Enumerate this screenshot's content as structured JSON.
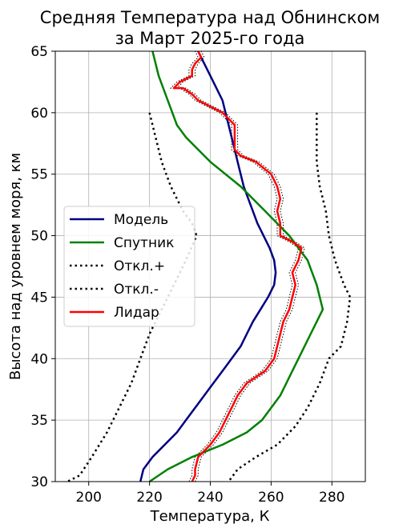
{
  "chart_data": {
    "type": "line",
    "title": [
      "Средняя Температура над Обнинском",
      "за Март 2025-го года"
    ],
    "xlabel": "Температура, К",
    "ylabel": "Высота над уровнем моря, км",
    "xlim": [
      189,
      291
    ],
    "ylim": [
      30,
      65
    ],
    "xticks": [
      200,
      220,
      240,
      260,
      280
    ],
    "yticks": [
      30,
      35,
      40,
      45,
      50,
      55,
      60,
      65
    ],
    "grid": true,
    "legend_position": "center-left",
    "series": [
      {
        "name": "Модель",
        "color": "#000080",
        "style": "solid",
        "points": [
          [
            217,
            30
          ],
          [
            218,
            31
          ],
          [
            221,
            32
          ],
          [
            225,
            33
          ],
          [
            229,
            34
          ],
          [
            232,
            35
          ],
          [
            235,
            36
          ],
          [
            238,
            37
          ],
          [
            241,
            38
          ],
          [
            244,
            39
          ],
          [
            247,
            40
          ],
          [
            250,
            41
          ],
          [
            252,
            42
          ],
          [
            254,
            43
          ],
          [
            256.5,
            44
          ],
          [
            259,
            45
          ],
          [
            261,
            46
          ],
          [
            261.5,
            47
          ],
          [
            261,
            48
          ],
          [
            259.5,
            49
          ],
          [
            257.5,
            50
          ],
          [
            255.5,
            51
          ],
          [
            254,
            52
          ],
          [
            252.5,
            53
          ],
          [
            251,
            54
          ],
          [
            250,
            55
          ],
          [
            249,
            56
          ],
          [
            248,
            57
          ],
          [
            247,
            58
          ],
          [
            246,
            59
          ],
          [
            245,
            60
          ],
          [
            244,
            61
          ],
          [
            242,
            62
          ],
          [
            240,
            63
          ],
          [
            238,
            64
          ],
          [
            236,
            65
          ]
        ]
      },
      {
        "name": "Спутник",
        "color": "#008000",
        "style": "solid",
        "points": [
          [
            220,
            30
          ],
          [
            226,
            31
          ],
          [
            234,
            32
          ],
          [
            244,
            33
          ],
          [
            252,
            34
          ],
          [
            257,
            35
          ],
          [
            260,
            36
          ],
          [
            263,
            37
          ],
          [
            265,
            38
          ],
          [
            267,
            39
          ],
          [
            269,
            40
          ],
          [
            271,
            41
          ],
          [
            273,
            42
          ],
          [
            275,
            43
          ],
          [
            277,
            44
          ],
          [
            275,
            46
          ],
          [
            272,
            48
          ],
          [
            266,
            50
          ],
          [
            258,
            52
          ],
          [
            250,
            54
          ],
          [
            240,
            56
          ],
          [
            232,
            58
          ],
          [
            229,
            59
          ],
          [
            226,
            61
          ],
          [
            223,
            63
          ],
          [
            221,
            65
          ]
        ]
      },
      {
        "name": "Откл.+",
        "color": "#000000",
        "style": "dotted",
        "points": [
          [
            220,
            60
          ],
          [
            222,
            58
          ],
          [
            224,
            56
          ],
          [
            227,
            54
          ],
          [
            231,
            52
          ],
          [
            234,
            51
          ],
          [
            235.5,
            50
          ],
          [
            232,
            48
          ],
          [
            228,
            46
          ],
          [
            224,
            44
          ],
          [
            220,
            42
          ],
          [
            217,
            40
          ],
          [
            214,
            38
          ],
          [
            210,
            36
          ],
          [
            206,
            34
          ],
          [
            201,
            32
          ],
          [
            197,
            30.5
          ],
          [
            193,
            30
          ]
        ]
      },
      {
        "name": "Откл.-",
        "color": "#000000",
        "style": "dotted",
        "points": [
          [
            275,
            60
          ],
          [
            275,
            58
          ],
          [
            275,
            56
          ],
          [
            276,
            54
          ],
          [
            278,
            52
          ],
          [
            279,
            50
          ],
          [
            281,
            48
          ],
          [
            284,
            46
          ],
          [
            286,
            45
          ],
          [
            285,
            43
          ],
          [
            283,
            41
          ],
          [
            279,
            40
          ],
          [
            276,
            38
          ],
          [
            272,
            36
          ],
          [
            268,
            34.5
          ],
          [
            262,
            33
          ],
          [
            255,
            32
          ],
          [
            249,
            31
          ],
          [
            246,
            30
          ]
        ]
      },
      {
        "name": "Лидар",
        "color": "#ff0000",
        "style": "solid",
        "points": [
          [
            234,
            30
          ],
          [
            235,
            30.5
          ],
          [
            235,
            31
          ],
          [
            236,
            32
          ],
          [
            240,
            33
          ],
          [
            243,
            34
          ],
          [
            245,
            35
          ],
          [
            247,
            36
          ],
          [
            249,
            37
          ],
          [
            252,
            38
          ],
          [
            258,
            39
          ],
          [
            261,
            40
          ],
          [
            262,
            41
          ],
          [
            263,
            42
          ],
          [
            264,
            43
          ],
          [
            266,
            44
          ],
          [
            267,
            45
          ],
          [
            268,
            46
          ],
          [
            267,
            47
          ],
          [
            269,
            48
          ],
          [
            270,
            49
          ],
          [
            267,
            49.5
          ],
          [
            263,
            50
          ],
          [
            263,
            51
          ],
          [
            262,
            52
          ],
          [
            263,
            53
          ],
          [
            262,
            54
          ],
          [
            260,
            55
          ],
          [
            255,
            56
          ],
          [
            250,
            56.5
          ],
          [
            248,
            57
          ],
          [
            248,
            58
          ],
          [
            248,
            59
          ],
          [
            246,
            59.5
          ],
          [
            244,
            60
          ],
          [
            240,
            60.5
          ],
          [
            236,
            61
          ],
          [
            234,
            61.5
          ],
          [
            231,
            62
          ],
          [
            228,
            62
          ],
          [
            230,
            62.5
          ],
          [
            234,
            63
          ],
          [
            234,
            63.5
          ],
          [
            235,
            64
          ],
          [
            237,
            64.5
          ],
          [
            236,
            65
          ]
        ]
      }
    ],
    "lidar_band": {
      "name": "Лидар (погрешность)",
      "color": "#000000",
      "style": "dotted",
      "offset": 1
    }
  }
}
